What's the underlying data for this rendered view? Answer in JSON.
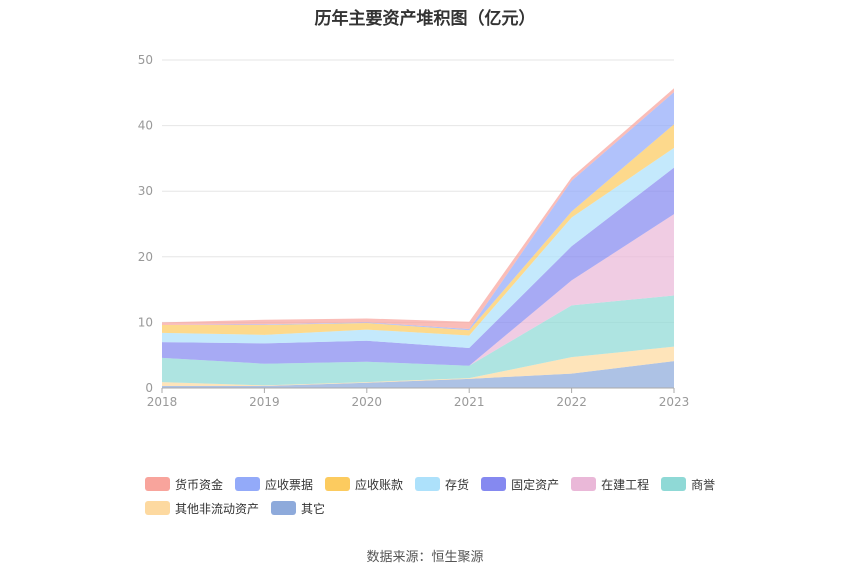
{
  "chart_data": {
    "type": "area",
    "stacked": true,
    "title": "历年主要资产堆积图（亿元）",
    "categories": [
      "2018",
      "2019",
      "2020",
      "2021",
      "2022",
      "2023"
    ],
    "ylim": [
      0,
      50
    ],
    "yticks": [
      0,
      10,
      20,
      30,
      40,
      50
    ],
    "grid": true,
    "legend_position": "bottom",
    "series": [
      {
        "name": "其它",
        "color": "#8eaadb",
        "values": [
          0.3,
          0.3,
          0.8,
          1.4,
          2.2,
          4.1
        ]
      },
      {
        "name": "其他非流动资产",
        "color": "#fdd9a0",
        "values": [
          0.6,
          0.1,
          0.1,
          0.1,
          2.5,
          2.2
        ]
      },
      {
        "name": "商誉",
        "color": "#8fd9d6",
        "values": [
          3.7,
          3.3,
          3.1,
          1.9,
          7.9,
          7.8
        ]
      },
      {
        "name": "在建工程",
        "color": "#eab8d8",
        "values": [
          0.0,
          0.0,
          0.0,
          0.0,
          3.8,
          12.4
        ]
      },
      {
        "name": "固定资产",
        "color": "#8589f0",
        "values": [
          2.4,
          3.1,
          3.2,
          2.7,
          5.2,
          7.1
        ]
      },
      {
        "name": "存货",
        "color": "#ade1fb",
        "values": [
          1.4,
          1.3,
          1.7,
          1.9,
          4.4,
          3.0
        ]
      },
      {
        "name": "应收账款",
        "color": "#fccb5f",
        "values": [
          1.2,
          1.5,
          1.0,
          0.8,
          0.9,
          3.6
        ]
      },
      {
        "name": "应收票据",
        "color": "#93aaf9",
        "values": [
          0.0,
          0.1,
          0.1,
          0.2,
          4.7,
          4.9
        ]
      },
      {
        "name": "货币资金",
        "color": "#f8a49c",
        "values": [
          0.4,
          0.7,
          0.6,
          1.1,
          0.5,
          0.6
        ]
      }
    ]
  },
  "legend_order": [
    "货币资金",
    "应收票据",
    "应收账款",
    "存货",
    "固定资产",
    "在建工程",
    "商誉",
    "其他非流动资产",
    "其它"
  ],
  "source": "数据来源：恒生聚源"
}
